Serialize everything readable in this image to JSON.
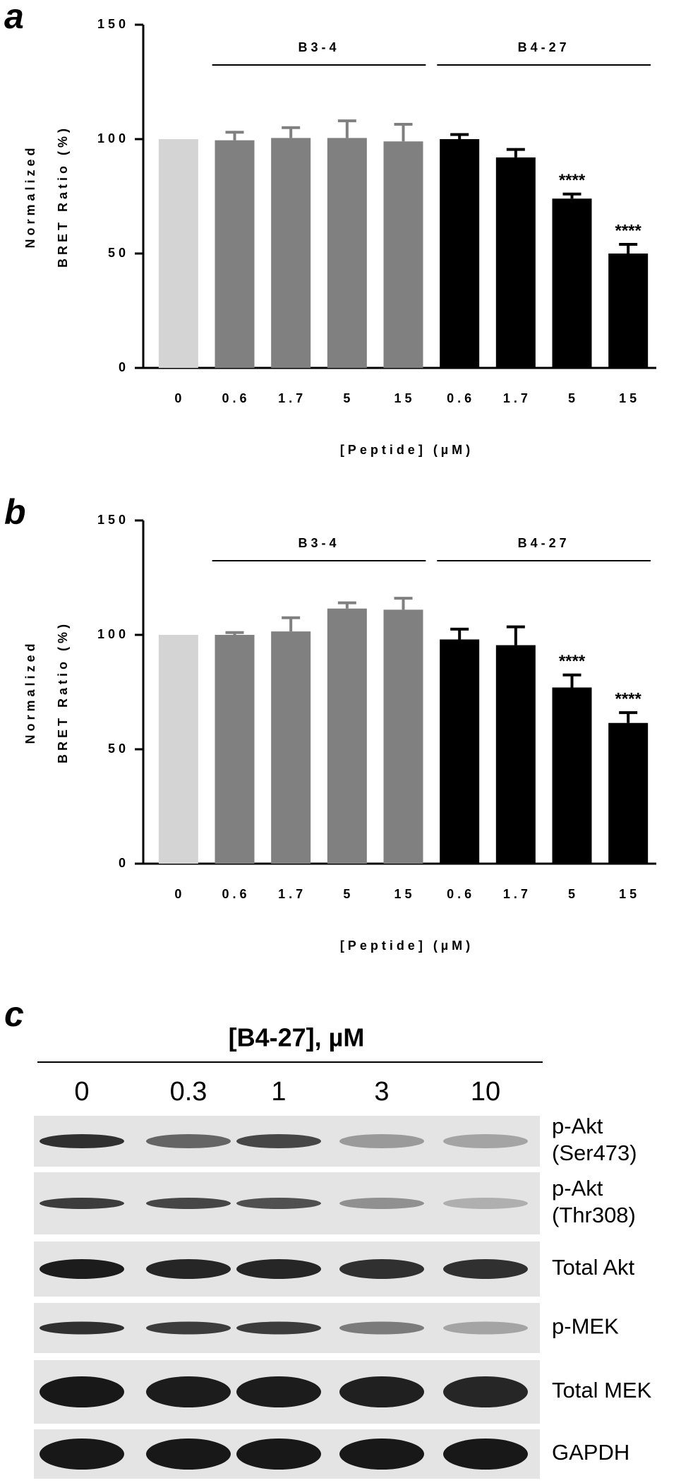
{
  "chart_data": [
    {
      "type": "bar",
      "panel_label": "a",
      "y_label": [
        "Normalized",
        "BRET Ratio (%)"
      ],
      "x_label": "[Peptide] (µM)",
      "categories": [
        "0",
        "0.6",
        "1.7",
        "5",
        "15",
        "0.6",
        "1.7",
        "5",
        "15"
      ],
      "category_groups": [
        null,
        "B3-4",
        "B3-4",
        "B3-4",
        "B3-4",
        "B4-27",
        "B4-27",
        "B4-27",
        "B4-27"
      ],
      "values": [
        100,
        99.5,
        100.5,
        100.5,
        99,
        100,
        92,
        74,
        50
      ],
      "errors": [
        0,
        3.5,
        4.5,
        7.5,
        7.5,
        2,
        3.5,
        2,
        4
      ],
      "colors": [
        "#d4d4d4",
        "#808080",
        "#808080",
        "#808080",
        "#808080",
        "#000000",
        "#000000",
        "#000000",
        "#000000"
      ],
      "annotations": [
        null,
        null,
        null,
        null,
        null,
        null,
        null,
        "****",
        "****"
      ],
      "ylim": [
        0,
        150
      ],
      "yticks": [
        0,
        50,
        100,
        150
      ]
    },
    {
      "type": "bar",
      "panel_label": "b",
      "y_label": [
        "Normalized",
        "BRET Ratio (%)"
      ],
      "x_label": "[Peptide] (µM)",
      "categories": [
        "0",
        "0.6",
        "1.7",
        "5",
        "15",
        "0.6",
        "1.7",
        "5",
        "15"
      ],
      "category_groups": [
        null,
        "B3-4",
        "B3-4",
        "B3-4",
        "B3-4",
        "B4-27",
        "B4-27",
        "B4-27",
        "B4-27"
      ],
      "values": [
        100,
        100,
        101.5,
        111.5,
        111,
        98,
        95.5,
        77,
        61.5
      ],
      "errors": [
        0,
        1,
        6,
        2.5,
        5,
        4.5,
        8,
        5.5,
        4.5
      ],
      "colors": [
        "#d4d4d4",
        "#808080",
        "#808080",
        "#808080",
        "#808080",
        "#000000",
        "#000000",
        "#000000",
        "#000000"
      ],
      "annotations": [
        null,
        null,
        null,
        null,
        null,
        null,
        null,
        "****",
        "****"
      ],
      "ylim": [
        0,
        150
      ],
      "yticks": [
        0,
        50,
        100,
        150
      ]
    }
  ],
  "panel_c": {
    "label": "c",
    "title": "[B4-27], µM",
    "doses": [
      "0",
      "0.3",
      "1",
      "3",
      "10"
    ],
    "rows": [
      [
        "p-Akt",
        "(Ser473)"
      ],
      [
        "p-Akt",
        "(Thr308)"
      ],
      [
        "Total Akt"
      ],
      [
        "p-MEK"
      ],
      [
        "Total MEK"
      ],
      [
        "GAPDH"
      ]
    ]
  }
}
